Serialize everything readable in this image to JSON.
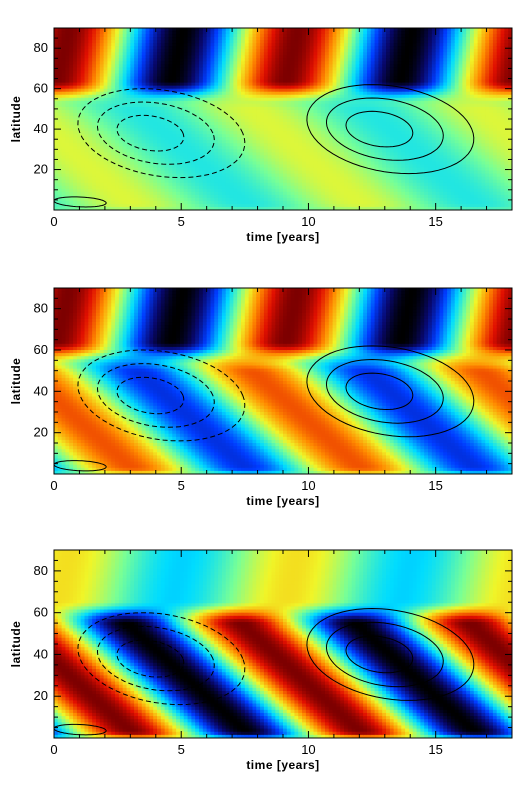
{
  "chart_data": [
    {
      "type": "heatmap",
      "panel": "top",
      "xlabel": "time [years]",
      "ylabel": "latitude",
      "xlim": [
        0,
        18
      ],
      "ylim": [
        0,
        90
      ],
      "xticks": [
        0,
        5,
        10,
        15
      ],
      "yticks": [
        20,
        40,
        60,
        80
      ],
      "field": {
        "period_years": 9,
        "high_latitude_band": {
          "latitude_range": [
            60,
            90
          ],
          "amplitude": 1.0
        },
        "low_latitude_band": {
          "latitude_range": [
            0,
            55
          ],
          "amplitude": 0.2
        }
      },
      "contours": [
        {
          "sign": "negative",
          "style": "dashed",
          "center": [
            3.5,
            38
          ],
          "levels": 3
        },
        {
          "sign": "positive",
          "style": "solid",
          "center": [
            12.5,
            40
          ],
          "levels": 3
        },
        {
          "sign": "positive",
          "style": "solid",
          "center": [
            0.8,
            4
          ],
          "levels": 1
        }
      ]
    },
    {
      "type": "heatmap",
      "panel": "middle",
      "xlabel": "time [years]",
      "ylabel": "latitude",
      "xlim": [
        0,
        18
      ],
      "ylim": [
        0,
        90
      ],
      "xticks": [
        0,
        5,
        10,
        15
      ],
      "yticks": [
        20,
        40,
        60,
        80
      ],
      "field": {
        "period_years": 9,
        "high_latitude_band": {
          "latitude_range": [
            60,
            90
          ],
          "amplitude": 1.0
        },
        "low_latitude_band": {
          "latitude_range": [
            0,
            55
          ],
          "amplitude": 0.65
        }
      },
      "contours": [
        {
          "sign": "negative",
          "style": "dashed",
          "center": [
            3.5,
            38
          ],
          "levels": 3
        },
        {
          "sign": "positive",
          "style": "solid",
          "center": [
            12.5,
            40
          ],
          "levels": 3
        },
        {
          "sign": "positive",
          "style": "solid",
          "center": [
            0.8,
            4
          ],
          "levels": 1
        }
      ]
    },
    {
      "type": "heatmap",
      "panel": "bottom",
      "xlabel": "time [years]",
      "ylabel": "latitude",
      "xlim": [
        0,
        18
      ],
      "ylim": [
        0,
        90
      ],
      "xticks": [
        0,
        5,
        10,
        15
      ],
      "yticks": [
        20,
        40,
        60,
        80
      ],
      "field": {
        "period_years": 9,
        "high_latitude_band": {
          "latitude_range": [
            60,
            90
          ],
          "amplitude": 0.3
        },
        "low_latitude_band": {
          "latitude_range": [
            0,
            60
          ],
          "amplitude": 1.0
        }
      },
      "contours": [
        {
          "sign": "negative",
          "style": "dashed",
          "center": [
            3.5,
            38
          ],
          "levels": 3
        },
        {
          "sign": "positive",
          "style": "solid",
          "center": [
            12.5,
            40
          ],
          "levels": 3
        },
        {
          "sign": "positive",
          "style": "solid",
          "center": [
            0.8,
            4
          ],
          "levels": 1
        }
      ]
    }
  ]
}
